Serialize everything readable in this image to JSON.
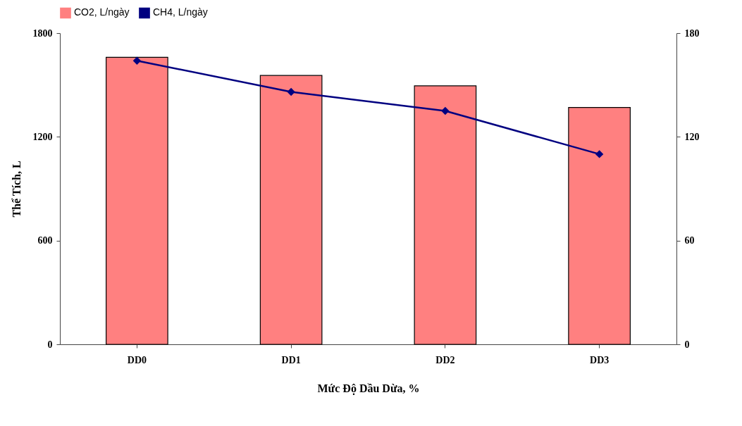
{
  "chart_data": {
    "type": "bar",
    "xlabel": "Mức Độ Dầu Dừa, %",
    "ylabel": "Thể Tích, L",
    "categories": [
      "DD0",
      "DD1",
      "DD2",
      "DD3"
    ],
    "series": [
      {
        "name": "CO2, L/ngày",
        "color": "#ff8080",
        "values": [
          1660,
          1555,
          1495,
          1370
        ]
      },
      {
        "name": "CH4, L/ngày",
        "color": "#000080",
        "values": [
          164,
          146,
          135,
          110
        ],
        "type": "line",
        "axis": "y2",
        "marker": "diamond"
      }
    ],
    "ylim": [
      0,
      1800
    ],
    "yticks": [
      0,
      600,
      1200,
      1800
    ],
    "y2lim": [
      0,
      180
    ],
    "y2ticks": [
      0,
      60,
      120,
      180
    ],
    "grid": false,
    "legend": "top"
  }
}
